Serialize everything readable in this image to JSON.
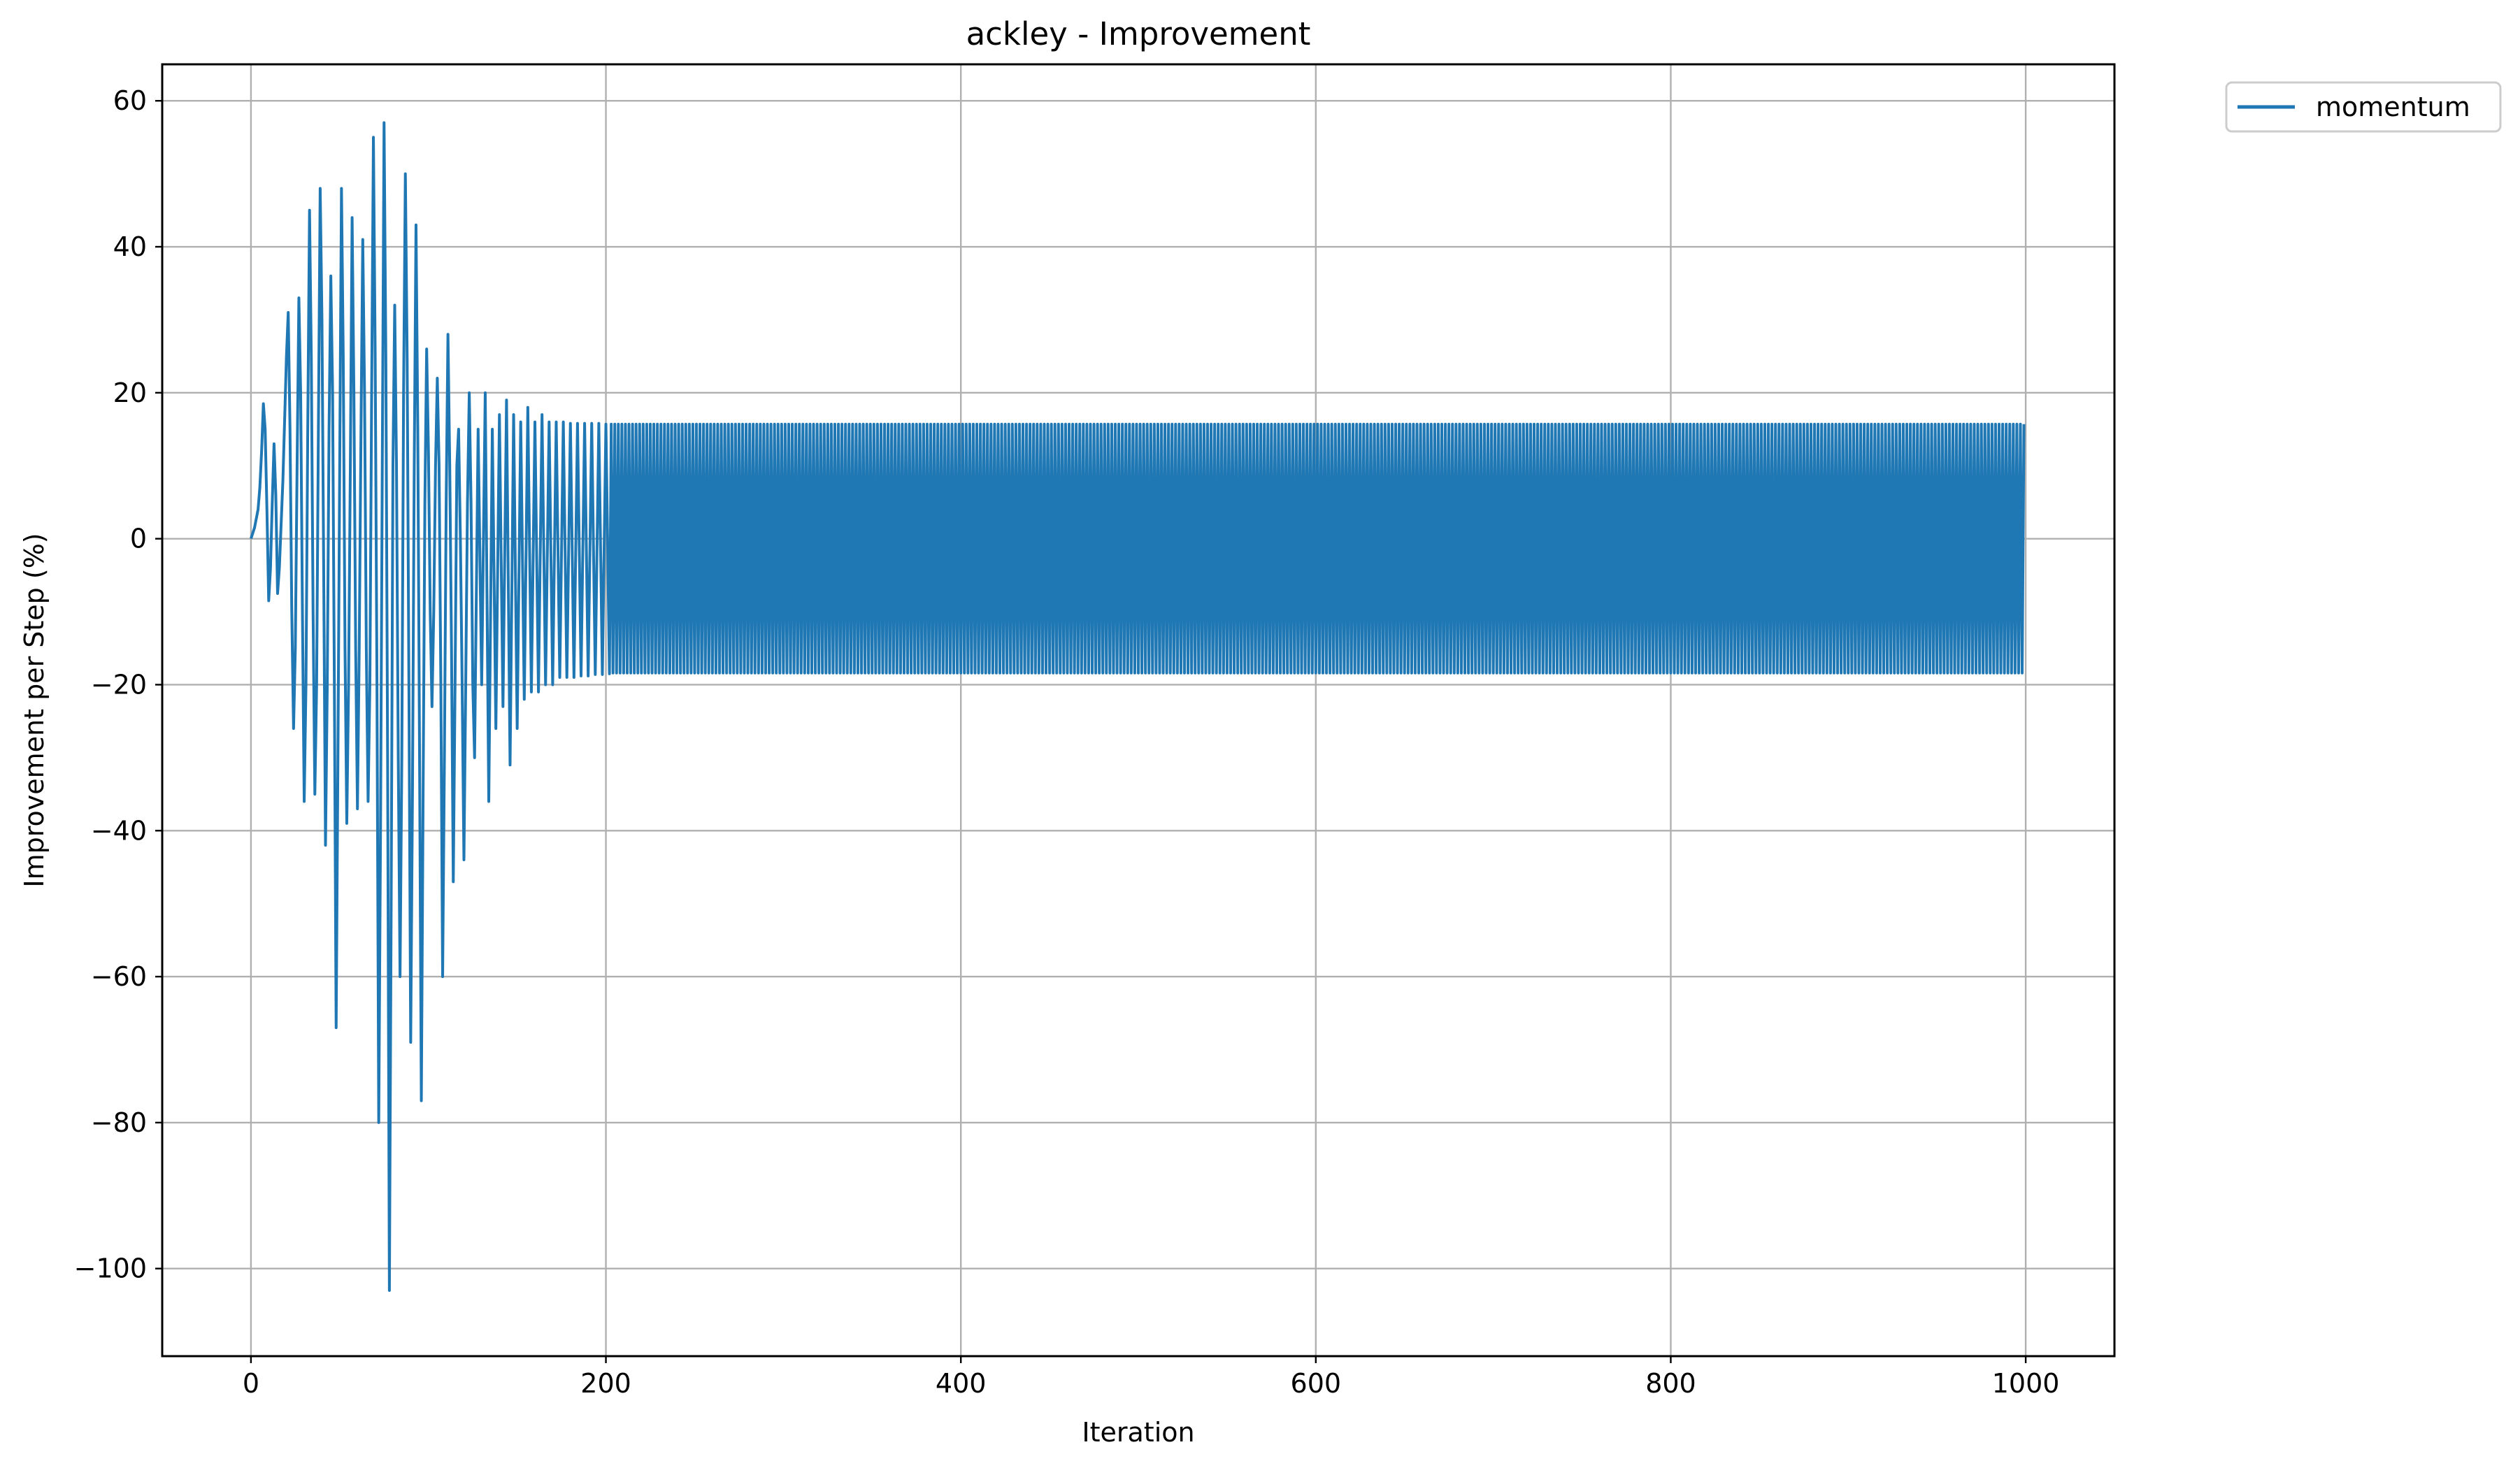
{
  "chart_data": {
    "type": "line",
    "title": "ackley - Improvement",
    "xlabel": "Iteration",
    "ylabel": "Improvement per Step (%)",
    "xlim": [
      -50,
      1050
    ],
    "ylim": [
      -112,
      65
    ],
    "x_ticks": [
      0,
      200,
      400,
      600,
      800,
      1000
    ],
    "y_ticks": [
      -100,
      -80,
      -60,
      -40,
      -20,
      0,
      20,
      40,
      60
    ],
    "x_tick_labels": [
      "0",
      "200",
      "400",
      "600",
      "800",
      "1000"
    ],
    "y_tick_labels": [
      "−100",
      "−80",
      "−60",
      "−40",
      "−20",
      "0",
      "20",
      "40",
      "60"
    ],
    "grid": true,
    "legend": {
      "placement": "outside-top-right"
    },
    "series": [
      {
        "name": "momentum",
        "color": "#1f77b4",
        "x_range": [
          0,
          999
        ],
        "points": [
          [
            0,
            0
          ],
          [
            2,
            1.5
          ],
          [
            4,
            4
          ],
          [
            5,
            7
          ],
          [
            6,
            12
          ],
          [
            7,
            18.5
          ],
          [
            8,
            15
          ],
          [
            9,
            4
          ],
          [
            10,
            -8.5
          ],
          [
            11,
            -4
          ],
          [
            12,
            5
          ],
          [
            13,
            13
          ],
          [
            14,
            6
          ],
          [
            15,
            -7.5
          ],
          [
            16,
            -4
          ],
          [
            18,
            8
          ],
          [
            20,
            25
          ],
          [
            21,
            31
          ],
          [
            22,
            15
          ],
          [
            23,
            -10
          ],
          [
            24,
            -26
          ],
          [
            25,
            -15
          ],
          [
            26,
            10
          ],
          [
            27,
            33
          ],
          [
            28,
            20
          ],
          [
            29,
            -10
          ],
          [
            30,
            -36
          ],
          [
            31,
            -20
          ],
          [
            32,
            15
          ],
          [
            33,
            45
          ],
          [
            34,
            25
          ],
          [
            35,
            -10
          ],
          [
            36,
            -35
          ],
          [
            37,
            -20
          ],
          [
            38,
            15
          ],
          [
            39,
            48
          ],
          [
            40,
            30
          ],
          [
            41,
            -5
          ],
          [
            42,
            -42
          ],
          [
            43,
            -20
          ],
          [
            44,
            15
          ],
          [
            45,
            36
          ],
          [
            46,
            20
          ],
          [
            47,
            -20
          ],
          [
            48,
            -67
          ],
          [
            49,
            -30
          ],
          [
            50,
            10
          ],
          [
            51,
            48
          ],
          [
            52,
            25
          ],
          [
            53,
            -15
          ],
          [
            54,
            -39
          ],
          [
            55,
            -20
          ],
          [
            56,
            10
          ],
          [
            57,
            44
          ],
          [
            58,
            20
          ],
          [
            59,
            -15
          ],
          [
            60,
            -37
          ],
          [
            61,
            -15
          ],
          [
            62,
            15
          ],
          [
            63,
            41
          ],
          [
            64,
            20
          ],
          [
            65,
            -15
          ],
          [
            66,
            -36
          ],
          [
            67,
            -20
          ],
          [
            68,
            20
          ],
          [
            69,
            55
          ],
          [
            70,
            25
          ],
          [
            71,
            -20
          ],
          [
            72,
            -80
          ],
          [
            73,
            -40
          ],
          [
            74,
            10
          ],
          [
            75,
            57
          ],
          [
            76,
            25
          ],
          [
            77,
            -30
          ],
          [
            78,
            -103
          ],
          [
            79,
            -50
          ],
          [
            80,
            10
          ],
          [
            81,
            32
          ],
          [
            82,
            10
          ],
          [
            83,
            -30
          ],
          [
            84,
            -60
          ],
          [
            85,
            -30
          ],
          [
            86,
            20
          ],
          [
            87,
            50
          ],
          [
            88,
            25
          ],
          [
            89,
            -20
          ],
          [
            90,
            -69
          ],
          [
            91,
            -35
          ],
          [
            92,
            10
          ],
          [
            93,
            43
          ],
          [
            94,
            15
          ],
          [
            95,
            -30
          ],
          [
            96,
            -77
          ],
          [
            97,
            -35
          ],
          [
            98,
            5
          ],
          [
            99,
            26
          ],
          [
            100,
            12
          ],
          [
            101,
            -10
          ],
          [
            102,
            -23
          ],
          [
            103,
            -10
          ],
          [
            104,
            10
          ],
          [
            105,
            22
          ],
          [
            106,
            10
          ],
          [
            107,
            -20
          ],
          [
            108,
            -60
          ],
          [
            109,
            -30
          ],
          [
            110,
            5
          ],
          [
            111,
            28
          ],
          [
            112,
            10
          ],
          [
            113,
            -15
          ],
          [
            114,
            -47
          ],
          [
            115,
            -20
          ],
          [
            116,
            10
          ],
          [
            117,
            15
          ],
          [
            118,
            0
          ],
          [
            119,
            -20
          ],
          [
            120,
            -44
          ],
          [
            121,
            -20
          ],
          [
            122,
            5
          ],
          [
            123,
            20
          ],
          [
            124,
            5
          ],
          [
            125,
            -20
          ],
          [
            126,
            -30
          ],
          [
            128,
            15
          ],
          [
            130,
            -20
          ],
          [
            132,
            20
          ],
          [
            134,
            -36
          ],
          [
            136,
            15
          ],
          [
            138,
            -26
          ],
          [
            140,
            17
          ],
          [
            142,
            -23
          ],
          [
            144,
            19
          ],
          [
            146,
            -31
          ],
          [
            148,
            17
          ],
          [
            150,
            -26
          ],
          [
            152,
            16
          ],
          [
            154,
            -22
          ],
          [
            156,
            18
          ],
          [
            158,
            -21
          ],
          [
            160,
            16
          ],
          [
            162,
            -21
          ],
          [
            164,
            17
          ],
          [
            166,
            -20
          ],
          [
            168,
            16
          ],
          [
            170,
            -20
          ],
          [
            172,
            16
          ],
          [
            174,
            -19
          ],
          [
            176,
            16
          ],
          [
            178,
            -19
          ],
          [
            180,
            15.8
          ],
          [
            182,
            -19
          ],
          [
            184,
            15.8
          ],
          [
            186,
            -18.8
          ],
          [
            188,
            15.8
          ],
          [
            190,
            -18.8
          ],
          [
            192,
            15.8
          ],
          [
            194,
            -18.6
          ],
          [
            196,
            15.8
          ],
          [
            198,
            -18.6
          ],
          [
            200,
            15.7
          ],
          [
            202,
            -18.5
          ]
        ],
        "steady_state": {
          "from_iteration": 202,
          "to_iteration": 999,
          "period": 2,
          "high": 15.7,
          "low": -18.4
        }
      }
    ]
  }
}
